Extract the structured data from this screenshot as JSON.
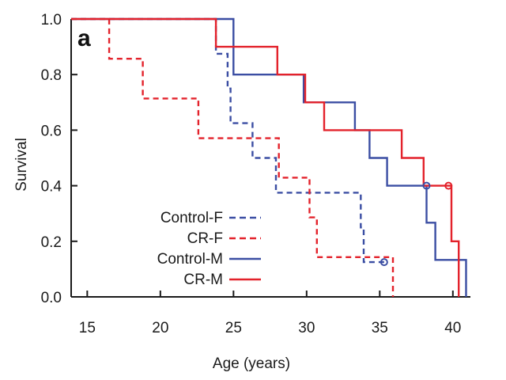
{
  "chart_data": {
    "type": "line",
    "panel_label": "a",
    "xlabel": "Age (years)",
    "ylabel": "Survival",
    "xlim": [
      13.9,
      41.2
    ],
    "ylim": [
      0.0,
      1.0
    ],
    "x_ticks": [
      15,
      20,
      25,
      30,
      35,
      40
    ],
    "x_tick_labels": [
      "15",
      "20",
      "25",
      "30",
      "35",
      "40"
    ],
    "y_ticks": [
      0.0,
      0.2,
      0.4,
      0.6,
      0.8,
      1.0
    ],
    "y_tick_labels": [
      "0.0",
      "0.2",
      "0.4",
      "0.6",
      "0.8",
      "1.0"
    ],
    "grid": false,
    "legend_position": "bottom-left",
    "colors": {
      "blue": "#3b4ea3",
      "red": "#e3222b"
    },
    "series": [
      {
        "name": "Control-F",
        "color": "#3b4ea3",
        "dashed": true,
        "steps": [
          [
            13.9,
            1.0
          ],
          [
            23.8,
            0.875
          ],
          [
            24.6,
            0.75
          ],
          [
            24.8,
            0.625
          ],
          [
            26.3,
            0.5
          ],
          [
            27.9,
            0.375
          ],
          [
            33.7,
            0.25
          ],
          [
            33.9,
            0.125
          ],
          [
            35.3,
            0.125
          ]
        ],
        "censored": [
          [
            35.3,
            0.125
          ]
        ]
      },
      {
        "name": "CR-F",
        "color": "#e3222b",
        "dashed": true,
        "steps": [
          [
            13.9,
            1.0
          ],
          [
            16.5,
            0.857
          ],
          [
            18.8,
            0.714
          ],
          [
            22.6,
            0.571
          ],
          [
            28.1,
            0.429
          ],
          [
            30.2,
            0.286
          ],
          [
            30.7,
            0.143
          ],
          [
            35.9,
            0.0
          ]
        ],
        "censored": []
      },
      {
        "name": "Control-M",
        "color": "#3b4ea3",
        "dashed": false,
        "steps": [
          [
            13.9,
            1.0
          ],
          [
            25.0,
            0.8
          ],
          [
            29.8,
            0.7
          ],
          [
            33.3,
            0.6
          ],
          [
            34.3,
            0.5
          ],
          [
            35.5,
            0.4
          ],
          [
            38.2,
            0.267
          ],
          [
            38.8,
            0.133
          ],
          [
            40.9,
            0.0
          ]
        ],
        "censored": [
          [
            38.2,
            0.4
          ]
        ]
      },
      {
        "name": "CR-M",
        "color": "#e3222b",
        "dashed": false,
        "steps": [
          [
            13.9,
            1.0
          ],
          [
            23.8,
            0.9
          ],
          [
            28.0,
            0.8
          ],
          [
            29.9,
            0.7
          ],
          [
            31.2,
            0.6
          ],
          [
            36.5,
            0.5
          ],
          [
            38.0,
            0.4
          ],
          [
            39.9,
            0.2
          ],
          [
            40.4,
            0.0
          ]
        ],
        "censored": [
          [
            39.7,
            0.4
          ]
        ]
      }
    ]
  }
}
